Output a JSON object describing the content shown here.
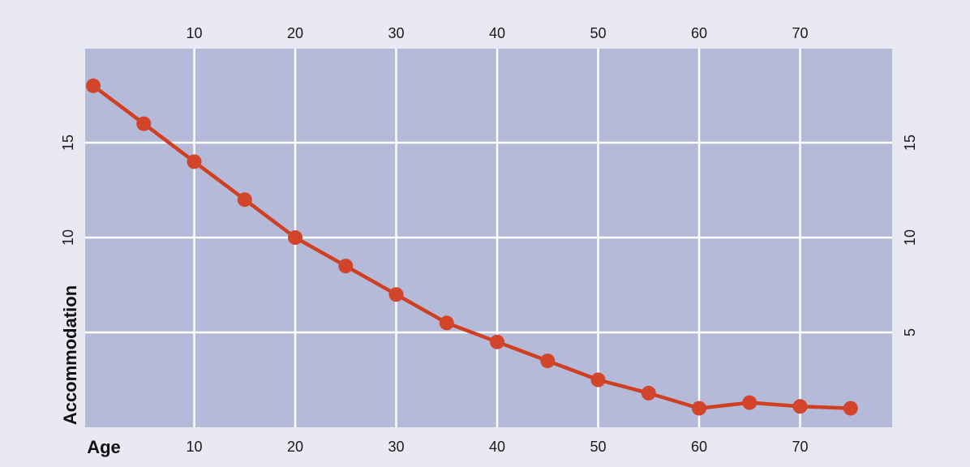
{
  "chart_data": {
    "type": "line",
    "xlabel": "Age",
    "ylabel": "Accommodation",
    "x_ticks": [
      10,
      20,
      30,
      40,
      50,
      60,
      70
    ],
    "y_ticks_left": [
      10,
      15
    ],
    "y_ticks_right": [
      5,
      10,
      15
    ],
    "xlim": [
      -1,
      77
    ],
    "ylim": [
      0,
      20
    ],
    "grid": true,
    "colors": {
      "line": "#cf3f22",
      "marker": "#d2452a",
      "plot_bg": "#b6bad9",
      "grid": "#ffffff",
      "page_bg": "#e8e9f2"
    },
    "series": [
      {
        "x": [
          0,
          5,
          10,
          15,
          20,
          25,
          30,
          35,
          40,
          45,
          50,
          55,
          60,
          65,
          70,
          75
        ],
        "y": [
          18,
          16,
          14,
          12,
          10,
          8.5,
          7,
          5.5,
          4.5,
          3.5,
          2.5,
          1.8,
          1.0,
          1.3,
          1.1,
          1.0
        ]
      }
    ]
  }
}
